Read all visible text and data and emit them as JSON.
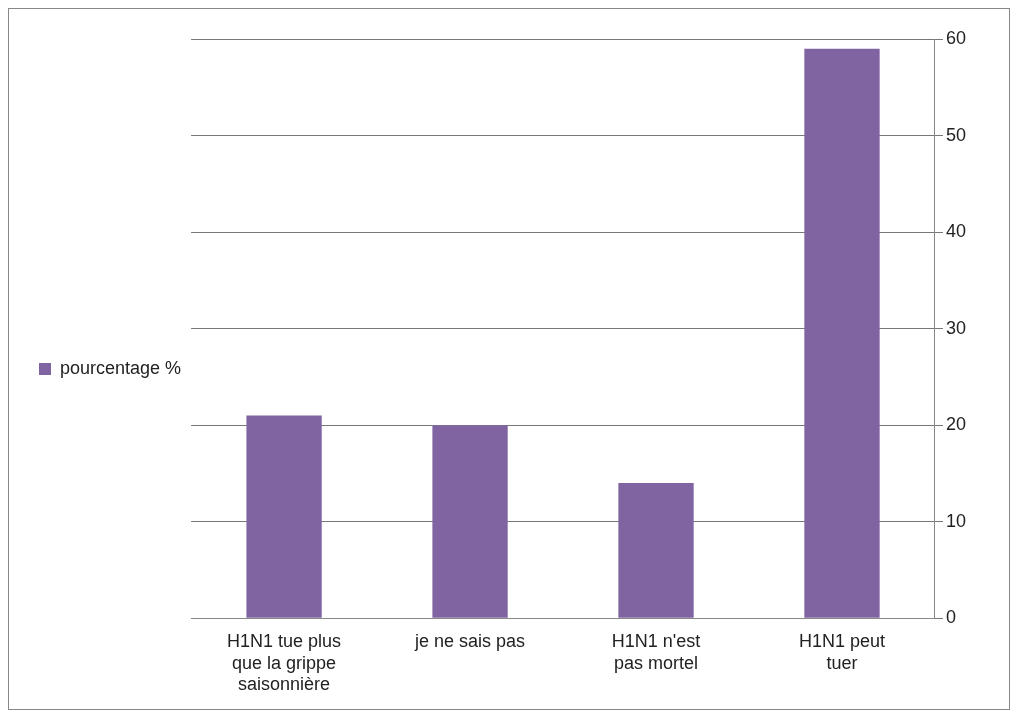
{
  "chart_data": {
    "type": "bar",
    "categories": [
      "H1N1 tue plus que la grippe saisonnière",
      "je ne sais pas",
      "H1N1 n'est pas mortel",
      "H1N1 peut tuer"
    ],
    "series": [
      {
        "name": "pourcentage %",
        "color": "#8064a2",
        "values": [
          21,
          20,
          14,
          59
        ]
      }
    ],
    "ylim": [
      0,
      60
    ],
    "yticks": [
      0,
      10,
      20,
      30,
      40,
      50,
      60
    ],
    "grid": "y",
    "legend": "left"
  }
}
